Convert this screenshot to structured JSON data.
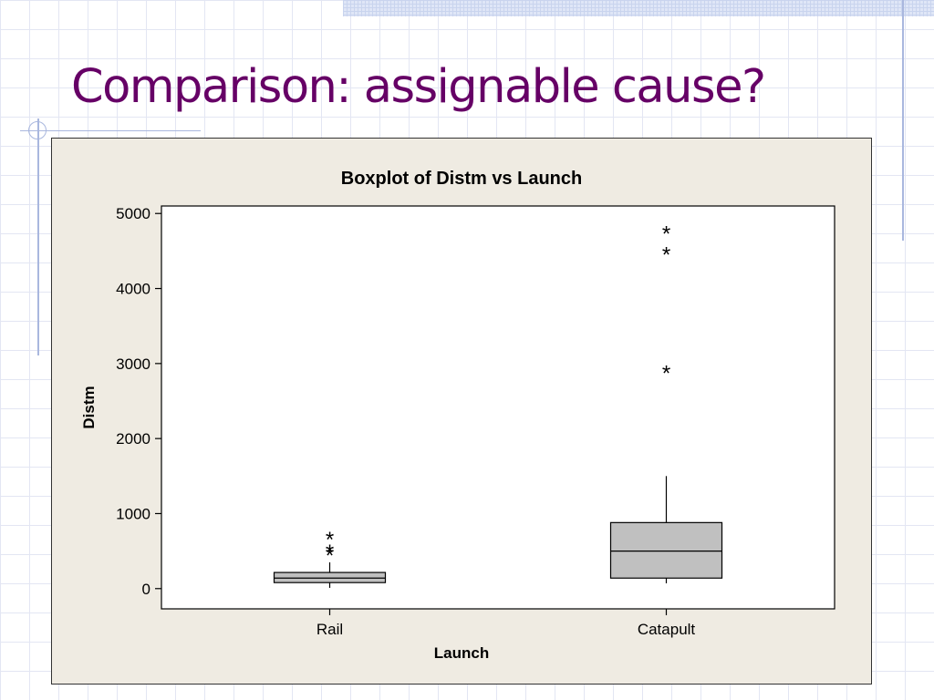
{
  "slide": {
    "title": "Comparison: assignable cause?"
  },
  "colors": {
    "title": "#660066",
    "chart_background": "#efebe2",
    "plot_background": "#ffffff",
    "box_fill": "#c0c0c0"
  },
  "chart_data": {
    "type": "boxplot",
    "title": "Boxplot of Distm vs Launch",
    "xlabel": "Launch",
    "ylabel": "Distm",
    "ylim": [
      -270,
      5100
    ],
    "yticks": [
      0,
      1000,
      2000,
      3000,
      4000,
      5000
    ],
    "categories": [
      "Rail",
      "Catapult"
    ],
    "boxes": [
      {
        "category": "Rail",
        "min": 10,
        "q1": 80,
        "median": 140,
        "q3": 215,
        "max": 350,
        "outliers": [
          490,
          530,
          700
        ]
      },
      {
        "category": "Catapult",
        "min": 70,
        "q1": 140,
        "median": 500,
        "q3": 880,
        "max": 1500,
        "outliers": [
          2920,
          4500,
          4780
        ]
      }
    ],
    "grid": false,
    "legend": "none"
  }
}
